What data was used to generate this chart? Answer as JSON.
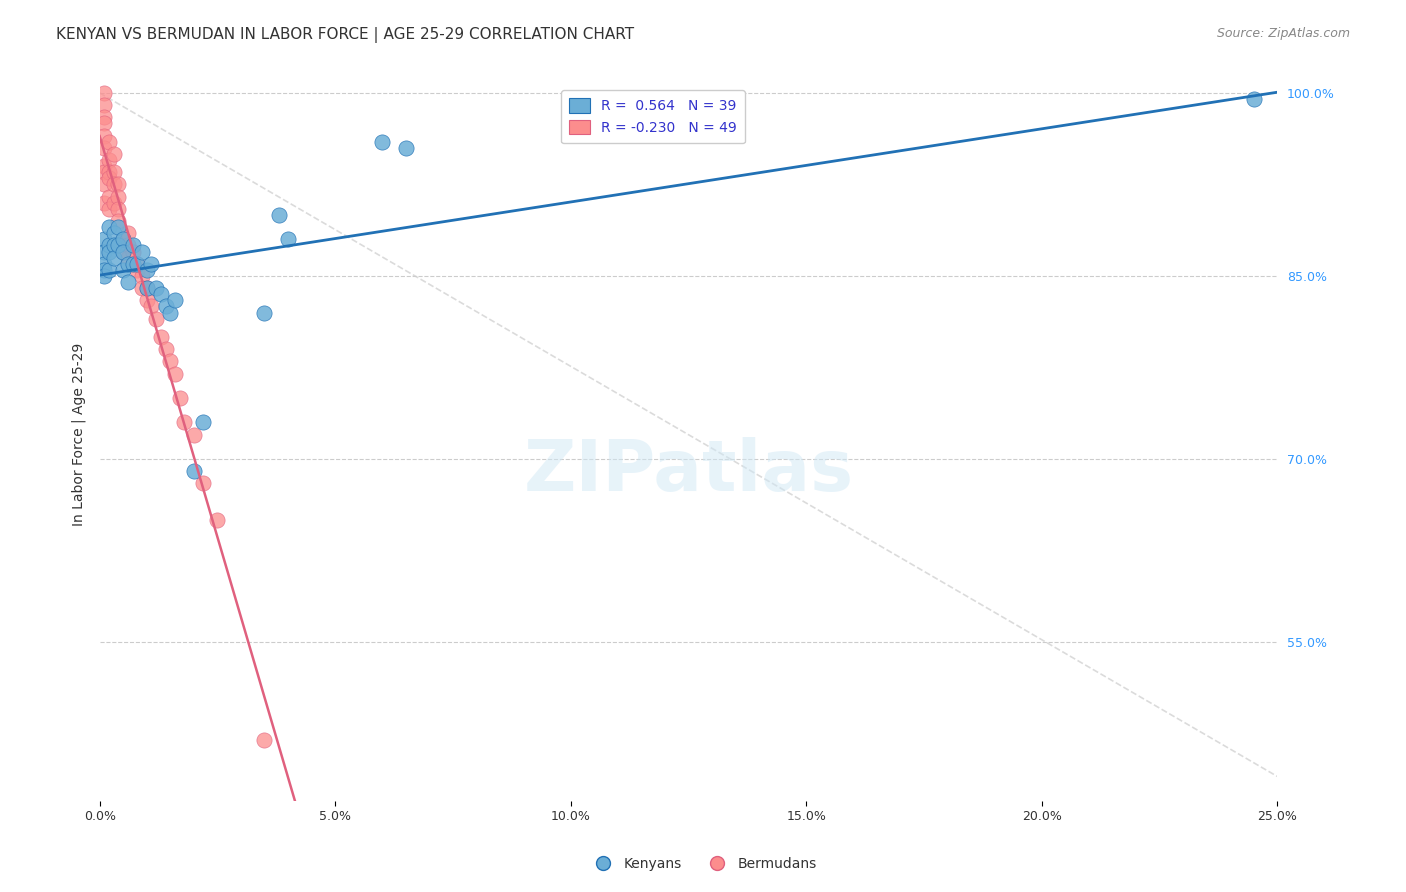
{
  "title": "KENYAN VS BERMUDAN IN LABOR FORCE | AGE 25-29 CORRELATION CHART",
  "source": "Source: ZipAtlas.com",
  "xlabel_bottom": "",
  "ylabel": "In Labor Force | Age 25-29",
  "xmin": 0.0,
  "xmax": 0.25,
  "ymin": 0.42,
  "ymax": 1.02,
  "yticks": [
    0.85,
    1.0
  ],
  "xtick_labels": [
    "0.0%",
    "25.0%"
  ],
  "ytick_labels_right": [
    "100.0%",
    "85.0%",
    "70.0%",
    "55.0%"
  ],
  "ytick_values_right": [
    1.0,
    0.85,
    0.7,
    0.55
  ],
  "grid_color": "#cccccc",
  "background_color": "#ffffff",
  "kenyan_color": "#6baed6",
  "bermudan_color": "#fc8d8d",
  "kenyan_line_color": "#2171b5",
  "bermudan_line_color": "#e0607e",
  "diagonal_color": "#cccccc",
  "legend_R_kenyan": "R =  0.564",
  "legend_N_kenyan": "N = 39",
  "legend_R_bermudan": "R = -0.230",
  "legend_N_bermudan": "N = 49",
  "kenyan_x": [
    0.001,
    0.001,
    0.001,
    0.001,
    0.001,
    0.002,
    0.002,
    0.002,
    0.002,
    0.003,
    0.003,
    0.003,
    0.004,
    0.004,
    0.005,
    0.005,
    0.005,
    0.006,
    0.006,
    0.007,
    0.007,
    0.008,
    0.009,
    0.01,
    0.01,
    0.011,
    0.012,
    0.013,
    0.014,
    0.015,
    0.016,
    0.02,
    0.022,
    0.035,
    0.038,
    0.04,
    0.06,
    0.065,
    0.245
  ],
  "kenyan_y": [
    0.88,
    0.87,
    0.86,
    0.855,
    0.85,
    0.89,
    0.875,
    0.87,
    0.855,
    0.885,
    0.875,
    0.865,
    0.89,
    0.875,
    0.88,
    0.87,
    0.855,
    0.86,
    0.845,
    0.875,
    0.86,
    0.86,
    0.87,
    0.855,
    0.84,
    0.86,
    0.84,
    0.835,
    0.825,
    0.82,
    0.83,
    0.69,
    0.73,
    0.82,
    0.9,
    0.88,
    0.96,
    0.955,
    0.995
  ],
  "bermudan_x": [
    0.001,
    0.001,
    0.001,
    0.001,
    0.001,
    0.001,
    0.001,
    0.001,
    0.001,
    0.001,
    0.002,
    0.002,
    0.002,
    0.002,
    0.002,
    0.002,
    0.003,
    0.003,
    0.003,
    0.003,
    0.004,
    0.004,
    0.004,
    0.004,
    0.005,
    0.005,
    0.006,
    0.006,
    0.006,
    0.007,
    0.007,
    0.008,
    0.008,
    0.009,
    0.009,
    0.01,
    0.01,
    0.011,
    0.012,
    0.013,
    0.014,
    0.015,
    0.016,
    0.017,
    0.018,
    0.02,
    0.022,
    0.025,
    0.035
  ],
  "bermudan_y": [
    1.0,
    0.99,
    0.98,
    0.975,
    0.965,
    0.955,
    0.94,
    0.935,
    0.925,
    0.91,
    0.96,
    0.945,
    0.935,
    0.93,
    0.915,
    0.905,
    0.95,
    0.935,
    0.925,
    0.91,
    0.925,
    0.915,
    0.905,
    0.895,
    0.88,
    0.87,
    0.885,
    0.875,
    0.865,
    0.87,
    0.86,
    0.86,
    0.855,
    0.85,
    0.84,
    0.84,
    0.83,
    0.825,
    0.815,
    0.8,
    0.79,
    0.78,
    0.77,
    0.75,
    0.73,
    0.72,
    0.68,
    0.65,
    0.47
  ],
  "watermark": "ZIPatlas",
  "title_fontsize": 11,
  "axis_label_fontsize": 10,
  "tick_fontsize": 9,
  "legend_fontsize": 10,
  "source_fontsize": 9
}
